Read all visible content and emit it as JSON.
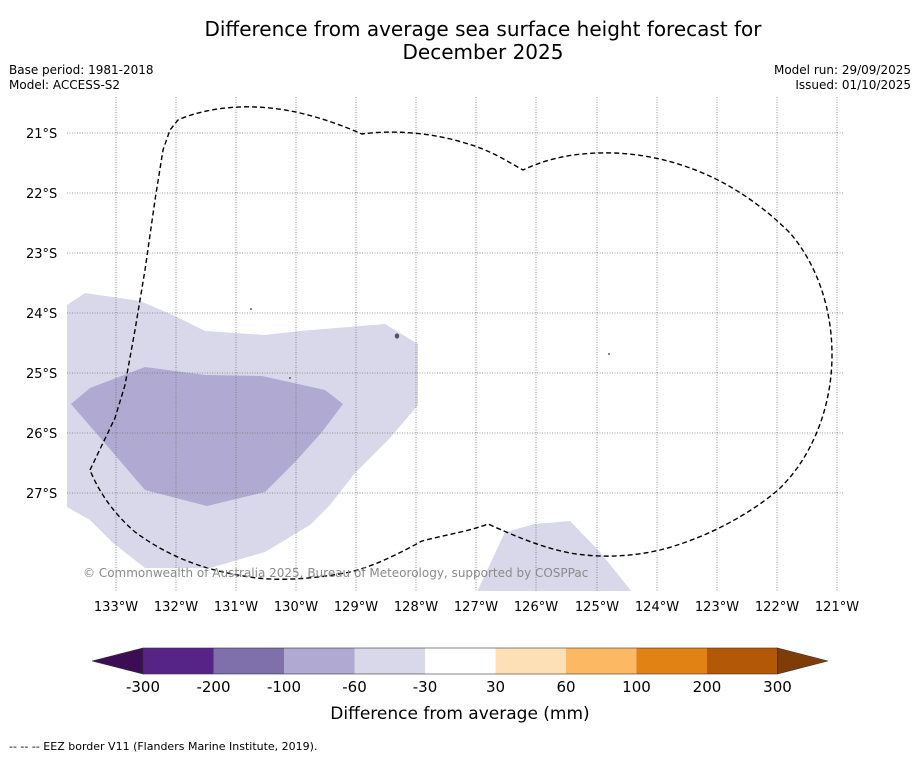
{
  "title": {
    "line1": "Difference from average sea surface height forecast for",
    "line2": "December 2025"
  },
  "meta": {
    "base_period": "Base period: 1981-2018",
    "model": "Model: ACCESS-S2",
    "model_run": "Model run: 29/09/2025",
    "issued": "Issued: 01/10/2025"
  },
  "map": {
    "lat_labels": [
      "21°S",
      "22°S",
      "23°S",
      "24°S",
      "25°S",
      "26°S",
      "27°S"
    ],
    "lon_labels": [
      "133°W",
      "132°W",
      "131°W",
      "130°W",
      "129°W",
      "128°W",
      "127°W",
      "126°W",
      "125°W",
      "124°W",
      "123°W",
      "122°W",
      "121°W"
    ],
    "copyright": "© Commonwealth of Australia 2025, Bureau of Meteorology, supported by COSPPac",
    "colors": {
      "band_neg30_neg60": "#d8d8ea",
      "band_neg60_neg100": "#b0a9d1"
    }
  },
  "colorbar": {
    "ticks": [
      "-300",
      "-200",
      "-100",
      "-60",
      "-30",
      "30",
      "60",
      "100",
      "200",
      "300"
    ],
    "colors": [
      "#3c0d54",
      "#562386",
      "#7f6fab",
      "#b0a9d1",
      "#d8d8ea",
      "#ffffff",
      "#fee0b6",
      "#fdb863",
      "#e08214",
      "#b35806",
      "#7f3b08"
    ],
    "label": "Difference from average (mm)"
  },
  "footer": "--  --  -- EEZ border V11 (Flanders Marine Institute, 2019)."
}
